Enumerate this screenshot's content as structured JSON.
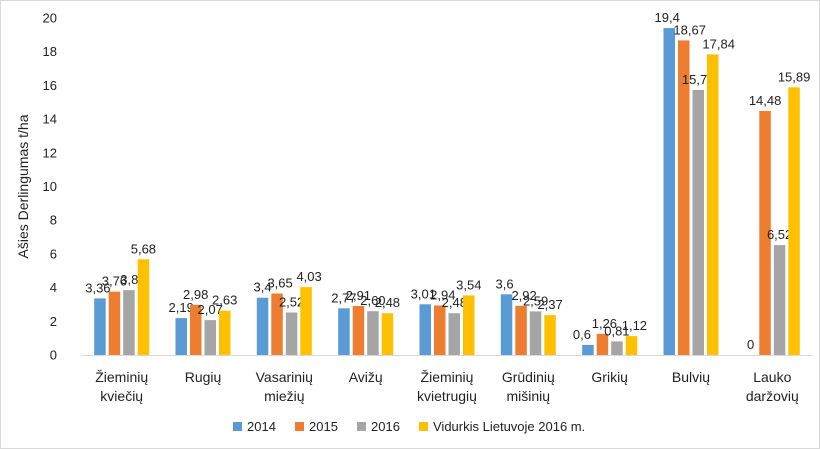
{
  "chart_data": {
    "type": "bar",
    "title": "",
    "xlabel": "",
    "ylabel": "Ašies Derlingumas t/ha",
    "ylim": [
      0,
      20
    ],
    "yticks": [
      0,
      2,
      4,
      6,
      8,
      10,
      12,
      14,
      16,
      18,
      20
    ],
    "grid": false,
    "legend_position": "bottom",
    "categories": [
      [
        "Žieminių",
        "kviečių"
      ],
      [
        "Rugių"
      ],
      [
        "Vasarinių",
        "miežių"
      ],
      [
        "Avižų"
      ],
      [
        "Žieminių",
        "kvietrugių"
      ],
      [
        "Grūdinių",
        "mišinių"
      ],
      [
        "Grikių"
      ],
      [
        "Bulvių"
      ],
      [
        "Lauko",
        "daržovių"
      ]
    ],
    "series": [
      {
        "name": "2014",
        "color": "#5B9BD5",
        "values": [
          3.36,
          2.19,
          3.4,
          2.77,
          3.01,
          3.6,
          0.6,
          19.4,
          0
        ],
        "labels": [
          "3,36",
          "2,19",
          "3,4",
          "2,77",
          "3,01",
          "3,6",
          "0,6",
          "19,4",
          "0"
        ]
      },
      {
        "name": "2015",
        "color": "#ED7D31",
        "values": [
          3.76,
          2.98,
          3.65,
          2.91,
          2.94,
          2.92,
          1.26,
          18.67,
          14.48
        ],
        "labels": [
          "3,76",
          "2,98",
          "3,65",
          "2,91",
          "2,94",
          "2,92",
          "1,26",
          "18,67",
          "14,48"
        ]
      },
      {
        "name": "2016",
        "color": "#A5A5A5",
        "values": [
          3.85,
          2.07,
          2.52,
          2.6,
          2.48,
          2.59,
          0.81,
          15.73,
          6.52
        ],
        "labels": [
          "3,85",
          "2,07",
          "2,52",
          "2,60",
          "2,48",
          "2,59",
          "0,81",
          "15,73",
          "6,52"
        ]
      },
      {
        "name": "Vidurkis Lietuvoje 2016 m.",
        "color": "#FFC000",
        "values": [
          5.68,
          2.63,
          4.03,
          2.48,
          3.54,
          2.37,
          1.12,
          17.84,
          15.89
        ],
        "labels": [
          "5,68",
          "2,63",
          "4,03",
          "2,48",
          "3,54",
          "2,37",
          "1,12",
          "17,84",
          "15,89"
        ]
      }
    ]
  }
}
